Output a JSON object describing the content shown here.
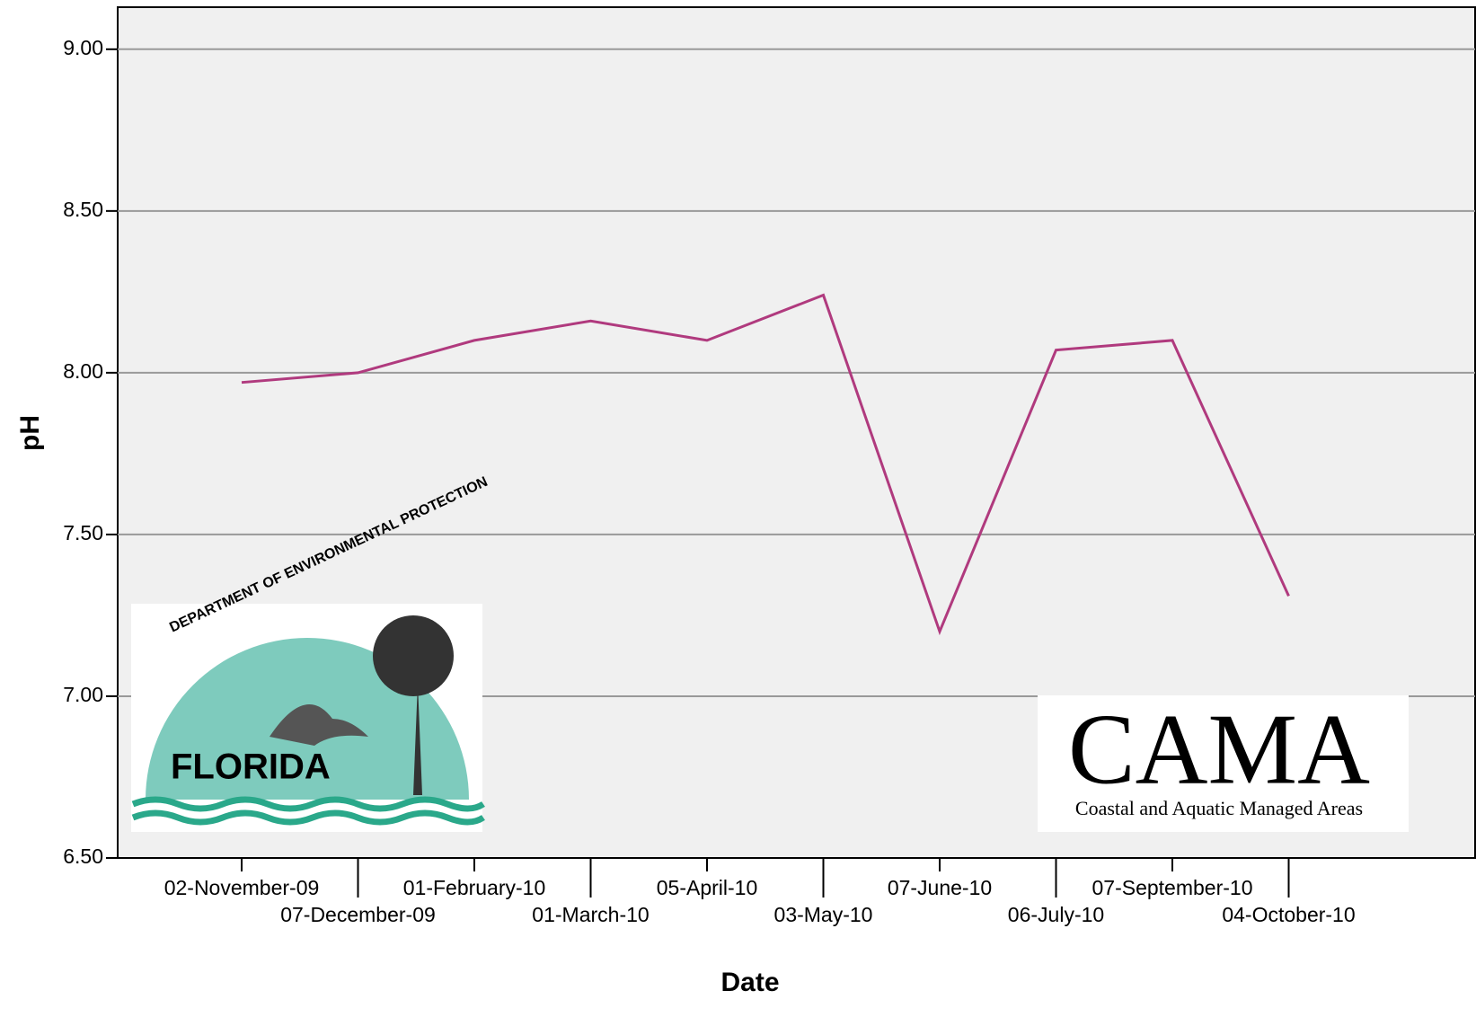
{
  "chart_data": {
    "type": "line",
    "x_label": "Date",
    "y_label": "pH",
    "categories": [
      "02-November-09",
      "07-December-09",
      "01-February-10",
      "01-March-10",
      "05-April-10",
      "03-May-10",
      "07-June-10",
      "06-July-10",
      "07-September-10",
      "04-October-10"
    ],
    "series": [
      {
        "name": "pH",
        "color": "#b03a7e",
        "values": [
          7.97,
          8.0,
          8.1,
          8.16,
          8.1,
          8.24,
          7.2,
          8.07,
          8.1,
          7.31
        ]
      }
    ],
    "ylim": [
      6.5,
      9.13
    ],
    "yticks": [
      {
        "value": 6.5,
        "label": "6.50"
      },
      {
        "value": 7,
        "label": "7.00"
      },
      {
        "value": 7.5,
        "label": "7.50"
      },
      {
        "value": 8,
        "label": "8.00"
      },
      {
        "value": 8.5,
        "label": "8.50"
      },
      {
        "value": 9,
        "label": "9.00"
      }
    ],
    "grid": true,
    "annotations": [
      "DEPARTMENT OF ENVIRONMENTAL PROTECTION",
      "FLORIDA",
      "CAMA",
      "Coastal and Aquatic Managed Areas"
    ]
  }
}
